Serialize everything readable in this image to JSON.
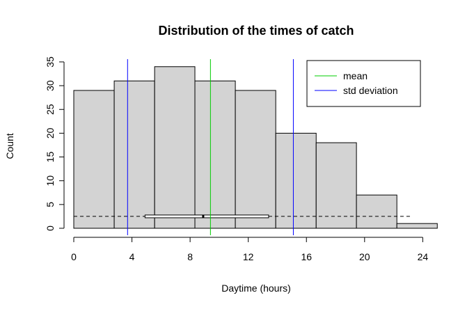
{
  "chart_data": {
    "type": "bar",
    "title": "Distribution of the times of catch",
    "xlabel": "Daytime (hours)",
    "ylabel": "Count",
    "xlim": [
      0,
      25
    ],
    "ylim": [
      0,
      35
    ],
    "x_ticks": [
      0,
      4,
      8,
      12,
      16,
      20,
      24
    ],
    "y_ticks": [
      0,
      5,
      10,
      15,
      20,
      25,
      30,
      35
    ],
    "bins": [
      {
        "start": 0.0,
        "end": 2.78,
        "count": 29
      },
      {
        "start": 2.78,
        "end": 5.56,
        "count": 31
      },
      {
        "start": 5.56,
        "end": 8.33,
        "count": 34
      },
      {
        "start": 8.33,
        "end": 11.11,
        "count": 31
      },
      {
        "start": 11.11,
        "end": 13.89,
        "count": 29
      },
      {
        "start": 13.89,
        "end": 16.67,
        "count": 20
      },
      {
        "start": 16.67,
        "end": 19.44,
        "count": 18
      },
      {
        "start": 19.44,
        "end": 22.22,
        "count": 7
      },
      {
        "start": 22.22,
        "end": 25.0,
        "count": 1
      }
    ],
    "bar_color": "#d3d3d3",
    "mean": 9.4,
    "std_lines": [
      3.7,
      15.1
    ],
    "mean_color": "#00cc00",
    "std_color": "#0000ff",
    "boxplot": {
      "whisker_low": 0.0,
      "q1": 4.9,
      "median": 8.9,
      "q3": 13.4,
      "whisker_high": 23.3,
      "level": 2.5
    },
    "legend": {
      "position": "top-right",
      "entries": [
        {
          "label": "mean",
          "color": "#00cc00"
        },
        {
          "label": "std deviation",
          "color": "#0000ff"
        }
      ]
    }
  }
}
